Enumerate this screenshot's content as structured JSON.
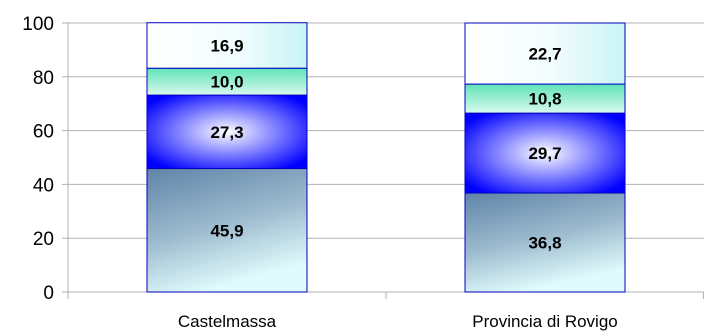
{
  "chart_data": {
    "type": "bar",
    "stacked": true,
    "categories": [
      "Castelmassa",
      "Provincia di Rovigo"
    ],
    "series": [
      {
        "values": [
          45.9,
          36.8
        ],
        "labels": [
          "45,9",
          "36,8"
        ],
        "style": "steel-gradient"
      },
      {
        "values": [
          27.3,
          29.7
        ],
        "labels": [
          "27,3",
          "29,7"
        ],
        "style": "blue-radial"
      },
      {
        "values": [
          10.0,
          10.8
        ],
        "labels": [
          "10,0",
          "10,8"
        ],
        "style": "aqua-gradient"
      },
      {
        "values": [
          16.9,
          22.7
        ],
        "labels": [
          "16,9",
          "22,7"
        ],
        "style": "white-cyan-gradient"
      }
    ],
    "ylim": [
      0,
      100
    ],
    "yticks": [
      0,
      20,
      40,
      60,
      80,
      100
    ],
    "ytick_labels": [
      "0",
      "20",
      "40",
      "60",
      "80",
      "100"
    ],
    "grid": true,
    "legend": "none",
    "colors": {
      "grid": "#b3b3b3",
      "axis": "#b3b3b3",
      "bar_border": "#0000c0",
      "steel_top": "#5f84a8",
      "steel_bottom": "#e0fbfc",
      "blue_center": "#ffffff",
      "blue_edge": "#0000ff",
      "aqua_top": "#5fe3b8",
      "aqua_bottom": "#d9f9ee",
      "white_left": "#ffffff",
      "cyan_right": "#c8f4f7"
    }
  }
}
